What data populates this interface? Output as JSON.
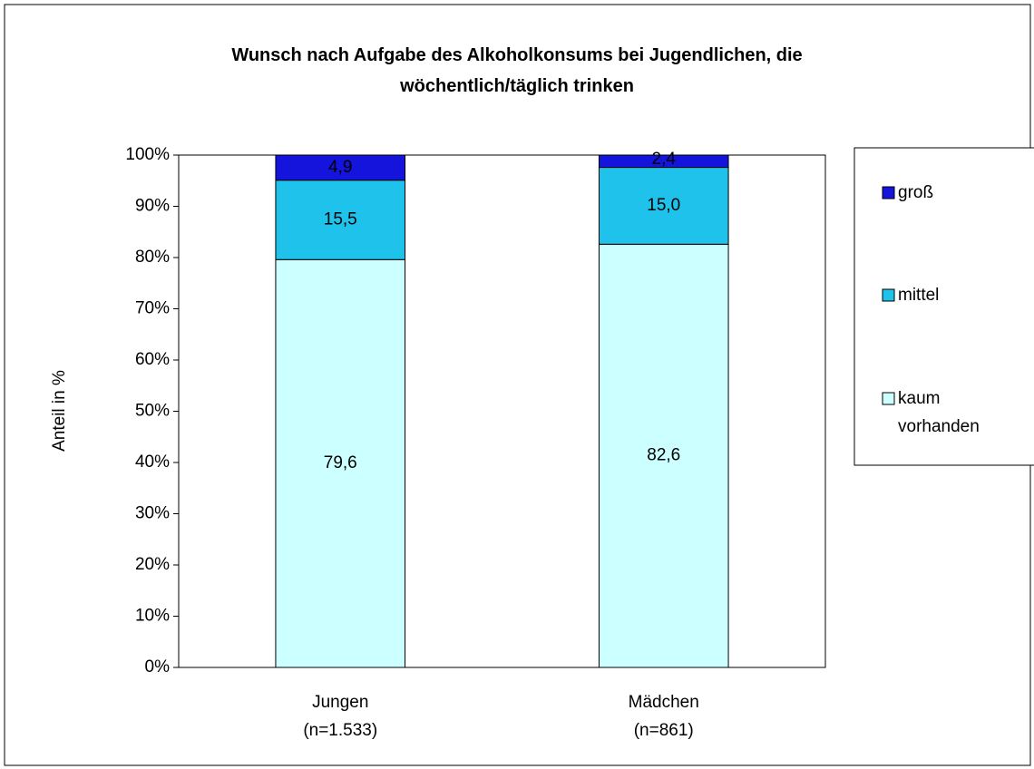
{
  "chart_data": {
    "type": "stacked_bar",
    "title": "Wunsch nach Aufgabe des Alkoholkonsums bei Jugendlichen, die\nwöchentlich/täglich trinken",
    "ylabel": "Anteil in %",
    "categories": [
      "Jungen\n(n=1.533)",
      "Mädchen\n(n=861)"
    ],
    "series": [
      {
        "name": "kaum\nvorhanden",
        "color": "#ccffff",
        "label_color": "#000000",
        "values": [
          79.6,
          82.6
        ],
        "value_labels": [
          "79,6",
          "82,6"
        ]
      },
      {
        "name": "mittel",
        "color": "#1ec2ea",
        "label_color": "#000000",
        "values": [
          15.5,
          15.0
        ],
        "value_labels": [
          "15,5",
          "15,0"
        ]
      },
      {
        "name": "groß",
        "color": "#1414dc",
        "label_color": "#ffffff",
        "values": [
          4.9,
          2.4
        ],
        "value_labels": [
          "4,9",
          "2,4"
        ]
      }
    ],
    "ylim": [
      0,
      100
    ],
    "yticks": [
      {
        "value": 0,
        "label": "0%"
      },
      {
        "value": 10,
        "label": "10%"
      },
      {
        "value": 20,
        "label": "20%"
      },
      {
        "value": 30,
        "label": "30%"
      },
      {
        "value": 40,
        "label": "40%"
      },
      {
        "value": 50,
        "label": "50%"
      },
      {
        "value": 60,
        "label": "60%"
      },
      {
        "value": 70,
        "label": "70%"
      },
      {
        "value": 80,
        "label": "80%"
      },
      {
        "value": 90,
        "label": "90%"
      },
      {
        "value": 100,
        "label": "100%"
      }
    ],
    "grid": false,
    "legend": "right"
  }
}
